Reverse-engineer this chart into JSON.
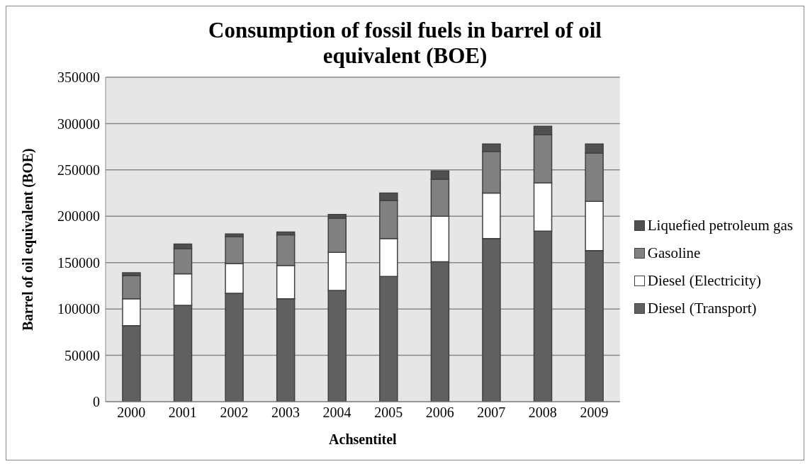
{
  "chart_data": {
    "type": "bar",
    "title": "Consumption of fossil fuels in barrel of oil equivalent (BOE)",
    "xlabel": "Achsentitel",
    "ylabel": "Barrel of oil equivalent (BOE)",
    "categories": [
      "2000",
      "2001",
      "2002",
      "2003",
      "2004",
      "2005",
      "2006",
      "2007",
      "2008",
      "2009"
    ],
    "stacked": true,
    "series": [
      {
        "name": "Diesel (Transport)",
        "color": "#606060",
        "values": [
          82000,
          104000,
          117000,
          111000,
          120000,
          135000,
          151000,
          176000,
          184000,
          163000
        ]
      },
      {
        "name": "Diesel (Electricity)",
        "color": "#ffffff",
        "values": [
          29000,
          34000,
          32000,
          36000,
          41000,
          41000,
          49000,
          49000,
          52000,
          53000
        ]
      },
      {
        "name": "Gasoline",
        "color": "#808080",
        "values": [
          25000,
          27000,
          29000,
          33000,
          37000,
          41000,
          40000,
          45000,
          52000,
          52000
        ]
      },
      {
        "name": "Liquefied petroleum gas",
        "color": "#505050",
        "values": [
          3000,
          5000,
          3000,
          3000,
          4000,
          8000,
          9000,
          8000,
          9000,
          10000
        ]
      }
    ],
    "ylim": [
      0,
      350000
    ],
    "yticks": [
      0,
      50000,
      100000,
      150000,
      200000,
      250000,
      300000,
      350000
    ],
    "grid": "y",
    "legend": "right"
  }
}
